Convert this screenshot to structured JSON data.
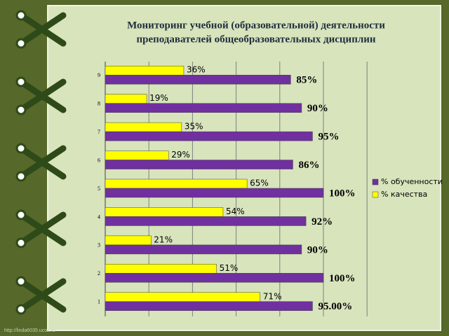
{
  "chart_data": {
    "type": "hbar",
    "title": "Мониторинг учебной (образовательной) деятельности преподавателей общеобразовательных дисциплин",
    "title_lines": [
      "Мониторинг учебной (образовательной) деятельности",
      "преподавателей общеобразовательных дисциплин"
    ],
    "categories": [
      "1",
      "2",
      "3",
      "4",
      "5",
      "6",
      "7",
      "8",
      "9"
    ],
    "series": [
      {
        "name": "% обученности",
        "color": "#7030a0",
        "values": [
          95,
          100,
          90,
          92,
          100,
          86,
          95,
          90,
          85
        ],
        "value_labels": [
          "95.00%",
          "100%",
          "90%",
          "92%",
          "100%",
          "86%",
          "95%",
          "90%",
          "85%"
        ]
      },
      {
        "name": "% качества",
        "color": "#ffff00",
        "values": [
          71,
          51,
          21,
          54,
          65,
          29,
          35,
          19,
          36
        ],
        "value_labels": [
          "71%",
          "51%",
          "21%",
          "54%",
          "65%",
          "29%",
          "35%",
          "19%",
          "36%"
        ]
      }
    ],
    "xlim": [
      0,
      120
    ],
    "xticks": [
      0,
      20,
      40,
      60,
      80,
      100,
      120
    ],
    "grid": true,
    "legend": "right",
    "source": "http://linda6035.ucoz.ru"
  }
}
